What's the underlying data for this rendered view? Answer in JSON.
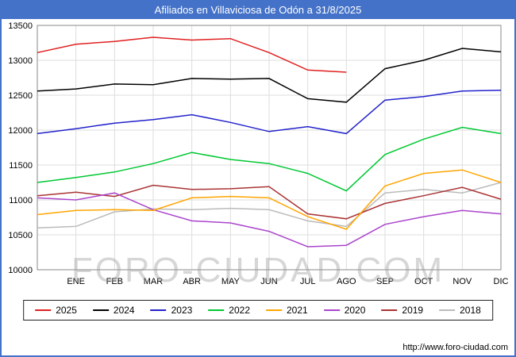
{
  "page": {
    "title": "Afiliados en Villaviciosa de Odón a 31/8/2025",
    "watermark": "FORO-CIUDAD.COM",
    "footer_url": "http://www.foro-ciudad.com",
    "colors": {
      "accent": "#4472c8",
      "grid": "#dddddd",
      "plot_border": "#888888",
      "tick_text": "#000000"
    }
  },
  "chart_data": {
    "type": "line",
    "title": "Afiliados en Villaviciosa de Odón a 31/8/2025",
    "x_categories": [
      "ENE",
      "FEB",
      "MAR",
      "ABR",
      "MAY",
      "JUN",
      "JUL",
      "AGO",
      "SEP",
      "OCT",
      "NOV",
      "DIC"
    ],
    "ylim": [
      10000,
      13500
    ],
    "y_ticks": [
      13500,
      13000,
      12500,
      12000,
      11500,
      11000,
      10500,
      10000
    ],
    "grid": true,
    "legend_position": "bottom",
    "series": [
      {
        "name": "2025",
        "color": "#e02020",
        "start": 13110,
        "values": [
          13230,
          13270,
          13330,
          13290,
          13310,
          13110,
          12860,
          12830
        ]
      },
      {
        "name": "2024",
        "color": "#000000",
        "start": 12560,
        "values": [
          12590,
          12660,
          12650,
          12740,
          12730,
          12740,
          12450,
          12400,
          12880,
          13000,
          13170,
          13120
        ]
      },
      {
        "name": "2023",
        "color": "#2222cc",
        "start": 11950,
        "values": [
          12020,
          12100,
          12150,
          12220,
          12110,
          11980,
          12050,
          11950,
          12430,
          12480,
          12560,
          12570
        ]
      },
      {
        "name": "2022",
        "color": "#00c832",
        "start": 11250,
        "values": [
          11320,
          11400,
          11520,
          11680,
          11580,
          11520,
          11380,
          11130,
          11650,
          11870,
          12040,
          11950
        ]
      },
      {
        "name": "2021",
        "color": "#ffa500",
        "start": 10790,
        "values": [
          10850,
          10860,
          10850,
          11030,
          11050,
          11030,
          10760,
          10580,
          11200,
          11380,
          11430,
          11250
        ]
      },
      {
        "name": "2020",
        "color": "#aa44cc",
        "start": 11030,
        "values": [
          11000,
          11100,
          10860,
          10700,
          10670,
          10550,
          10330,
          10350,
          10650,
          10760,
          10850,
          10800
        ]
      },
      {
        "name": "2019",
        "color": "#aa3333",
        "start": 11060,
        "values": [
          11110,
          11050,
          11210,
          11150,
          11160,
          11190,
          10800,
          10730,
          10950,
          11060,
          11180,
          11010
        ]
      },
      {
        "name": "2018",
        "color": "#bbbbbb",
        "start": 10600,
        "values": [
          10620,
          10830,
          10870,
          10860,
          10880,
          10860,
          10700,
          10620,
          11100,
          11150,
          11100,
          11250
        ]
      }
    ]
  }
}
